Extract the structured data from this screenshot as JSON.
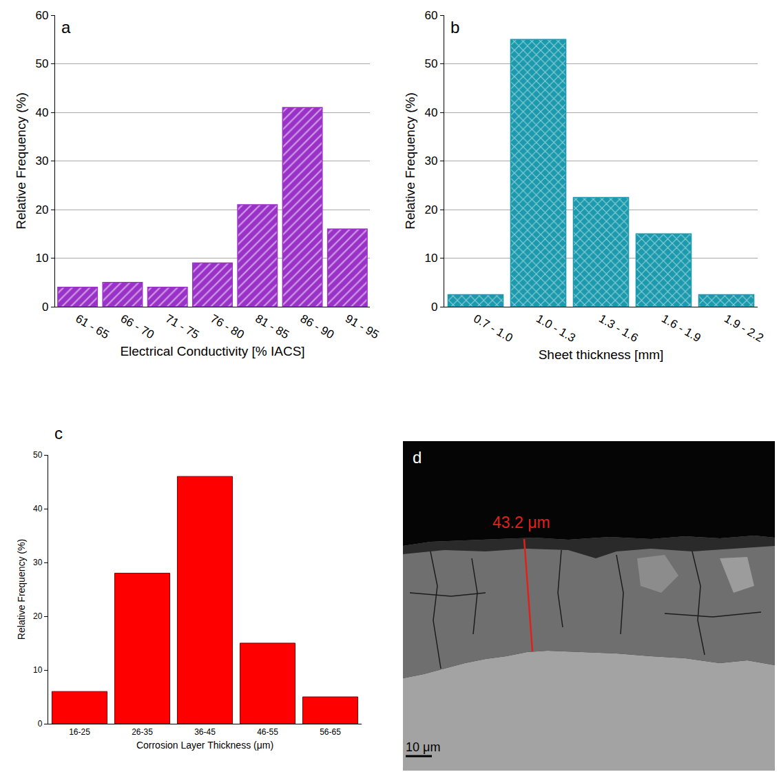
{
  "chart_data": [
    {
      "type": "bar",
      "annotation": "a",
      "categories": [
        "61 - 65",
        "66 - 70",
        "71 - 75",
        "76 - 80",
        "81 - 85",
        "86 - 90",
        "91 - 95"
      ],
      "values": [
        4,
        5,
        4,
        9,
        21,
        41,
        16
      ],
      "color": "#9a32c8",
      "marker": "hatched",
      "x_label": "Electrical Conductivity [% IACS]",
      "y_label": "Relative Frequency (%)",
      "ylim": [
        0,
        60
      ],
      "yticks": [
        0,
        10,
        20,
        30,
        40,
        50,
        60
      ],
      "grid": true
    },
    {
      "type": "bar",
      "annotation": "b",
      "categories": [
        "0.7 - 1.0",
        "1.0 - 1.3",
        "1.3 - 1.6",
        "1.6 - 1.9",
        "1.9 - 2.2"
      ],
      "values": [
        2.5,
        55,
        22.5,
        15,
        2.5
      ],
      "color": "#1b9aad",
      "marker": "crosshatched",
      "x_label": "Sheet thickness [mm]",
      "y_label": "Relative Frequency (%)",
      "ylim": [
        0,
        60
      ],
      "yticks": [
        0,
        10,
        20,
        30,
        40,
        50,
        60
      ],
      "grid": true
    },
    {
      "type": "bar",
      "annotation": "c",
      "categories": [
        "16-25",
        "26-35",
        "36-45",
        "46-55",
        "56-65"
      ],
      "values": [
        6,
        28,
        46,
        15,
        5
      ],
      "color": "#ff0000",
      "marker": "solid",
      "x_label": "Corrosion Layer Thickness (μm)",
      "y_label": "Relative Frequency (%)",
      "ylim": [
        0,
        50
      ],
      "yticks": [
        0,
        10,
        20,
        30,
        40,
        50
      ],
      "grid": false
    }
  ],
  "image": {
    "annotation": "d",
    "measurement": "43.2 μm",
    "scale_bar": "10 μm"
  }
}
